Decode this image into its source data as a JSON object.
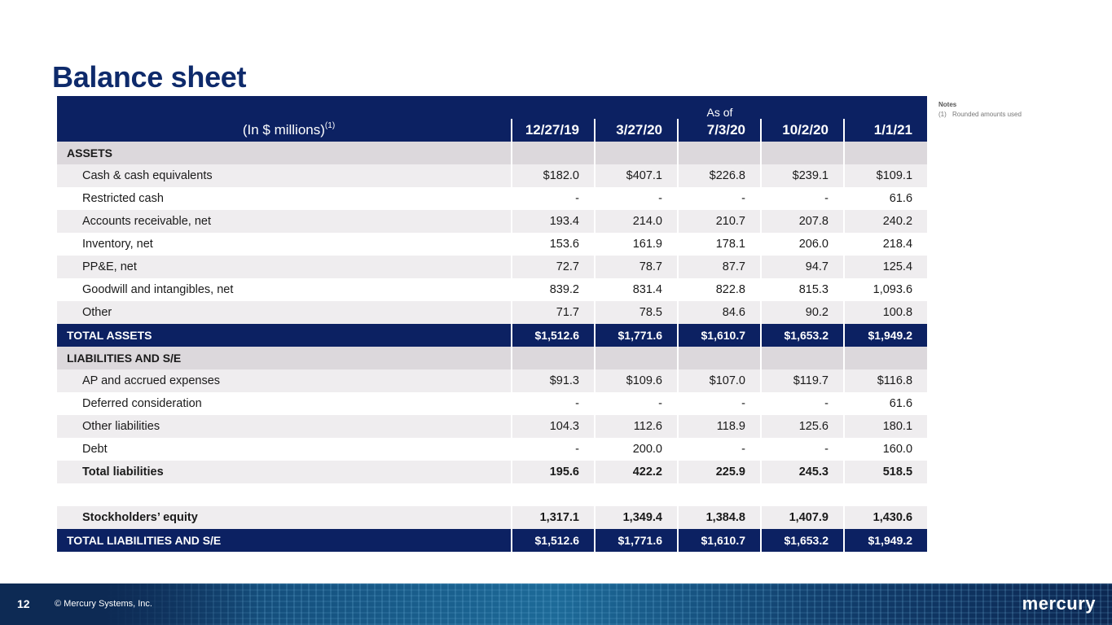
{
  "title": "Balance sheet",
  "notes": {
    "heading": "Notes",
    "items": [
      {
        "num": "(1)",
        "text": "Rounded amounts used"
      }
    ]
  },
  "table": {
    "units_label": "(In $ millions)",
    "units_sup": "(1)",
    "as_of": "As of",
    "columns": [
      "12/27/19",
      "3/27/20",
      "7/3/20",
      "10/2/20",
      "1/1/21"
    ],
    "rows": [
      {
        "type": "section",
        "label": "ASSETS"
      },
      {
        "type": "row",
        "shade": true,
        "label": "Cash & cash equivalents",
        "values": [
          "$182.0",
          "$407.1",
          "$226.8",
          "$239.1",
          "$109.1"
        ]
      },
      {
        "type": "row",
        "shade": false,
        "label": "Restricted cash",
        "values": [
          "-",
          "-",
          "-",
          "-",
          "61.6"
        ]
      },
      {
        "type": "row",
        "shade": true,
        "label": "Accounts receivable, net",
        "values": [
          "193.4",
          "214.0",
          "210.7",
          "207.8",
          "240.2"
        ]
      },
      {
        "type": "row",
        "shade": false,
        "label": "Inventory, net",
        "values": [
          "153.6",
          "161.9",
          "178.1",
          "206.0",
          "218.4"
        ]
      },
      {
        "type": "row",
        "shade": true,
        "label": "PP&E, net",
        "values": [
          "72.7",
          "78.7",
          "87.7",
          "94.7",
          "125.4"
        ]
      },
      {
        "type": "row",
        "shade": false,
        "label": "Goodwill and intangibles, net",
        "values": [
          "839.2",
          "831.4",
          "822.8",
          "815.3",
          "1,093.6"
        ]
      },
      {
        "type": "row",
        "shade": true,
        "label": "Other",
        "values": [
          "71.7",
          "78.5",
          "84.6",
          "90.2",
          "100.8"
        ]
      },
      {
        "type": "total",
        "label": "TOTAL ASSETS",
        "values": [
          "$1,512.6",
          "$1,771.6",
          "$1,610.7",
          "$1,653.2",
          "$1,949.2"
        ]
      },
      {
        "type": "section",
        "label": "LIABILITIES AND S/E"
      },
      {
        "type": "row",
        "shade": true,
        "label": "AP and accrued expenses",
        "values": [
          "$91.3",
          "$109.6",
          "$107.0",
          "$119.7",
          "$116.8"
        ]
      },
      {
        "type": "row",
        "shade": false,
        "label": "Deferred consideration",
        "values": [
          "-",
          "-",
          "-",
          "-",
          "61.6"
        ]
      },
      {
        "type": "row",
        "shade": true,
        "label": "Other liabilities",
        "values": [
          "104.3",
          "112.6",
          "118.9",
          "125.6",
          "180.1"
        ]
      },
      {
        "type": "row",
        "shade": false,
        "label": "Debt",
        "values": [
          "-",
          "200.0",
          "-",
          "-",
          "160.0"
        ]
      },
      {
        "type": "row",
        "shade": true,
        "bold": true,
        "label": "Total liabilities",
        "values": [
          "195.6",
          "422.2",
          "225.9",
          "245.3",
          "518.5"
        ]
      },
      {
        "type": "spacer"
      },
      {
        "type": "row",
        "shade": true,
        "bold": true,
        "label": "Stockholders’ equity",
        "values": [
          "1,317.1",
          "1,349.4",
          "1,384.8",
          "1,407.9",
          "1,430.6"
        ]
      },
      {
        "type": "total",
        "label": "TOTAL LIABILITIES AND S/E",
        "values": [
          "$1,512.6",
          "$1,771.6",
          "$1,610.7",
          "$1,653.2",
          "$1,949.2"
        ]
      }
    ]
  },
  "footer": {
    "page_number": "12",
    "copyright": "© Mercury Systems, Inc.",
    "logo": "mercury"
  }
}
